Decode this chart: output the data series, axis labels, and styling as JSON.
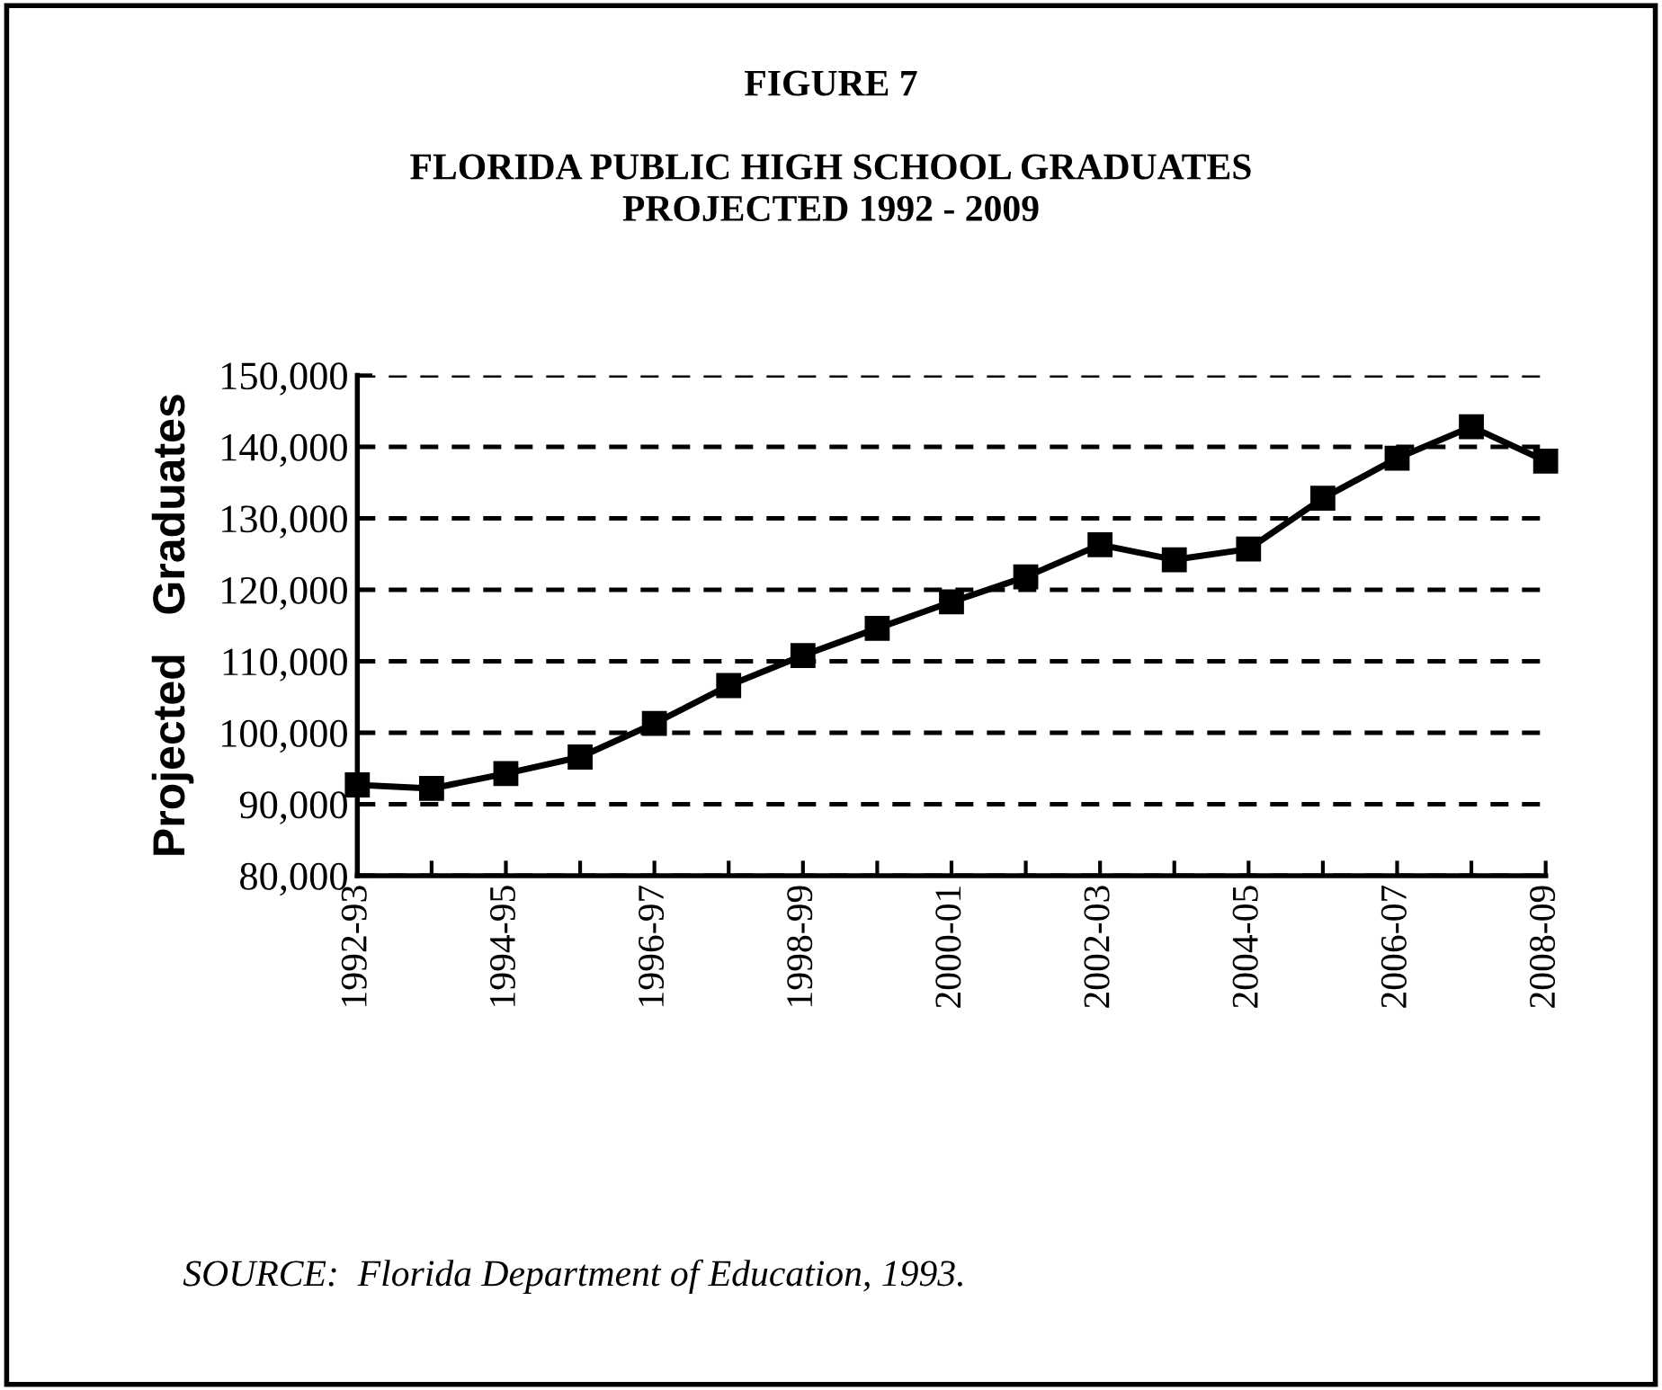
{
  "chart_data": {
    "type": "line",
    "title": "FIGURE 7\n\nFLORIDA PUBLIC HIGH SCHOOL GRADUATES\nPROJECTED 1992 - 2009",
    "ylabel": "Projected   Graduates",
    "categories": [
      "1992-93",
      null,
      "1994-95",
      null,
      "1996-97",
      null,
      "1998-99",
      null,
      "2000-01",
      null,
      "2002-03",
      null,
      "2004-05",
      null,
      "2006-07",
      null,
      "2008-09"
    ],
    "series": [
      {
        "color": "#000000",
        "values": [
          92700,
          92200,
          94300,
          96600,
          101300,
          106600,
          110800,
          114600,
          118300,
          121800,
          126300,
          124200,
          125700,
          132800,
          138400,
          142800,
          138000
        ]
      }
    ],
    "ylim": [
      80000,
      150000
    ],
    "yticks": [
      {
        "value": 80000,
        "label": "80,000"
      },
      {
        "value": 90000,
        "label": "90,000"
      },
      {
        "value": 100000,
        "label": "100,000"
      },
      {
        "value": 110000,
        "label": "110,000"
      },
      {
        "value": 120000,
        "label": "120,000"
      },
      {
        "value": 130000,
        "label": "130,000"
      },
      {
        "value": 140000,
        "label": "140,000"
      },
      {
        "value": 150000,
        "label": "150,000"
      }
    ],
    "grid": "y",
    "marker": "square",
    "line_style": "solid",
    "annotations": [
      "SOURCE:  Florida Department of Education, 1993."
    ]
  }
}
